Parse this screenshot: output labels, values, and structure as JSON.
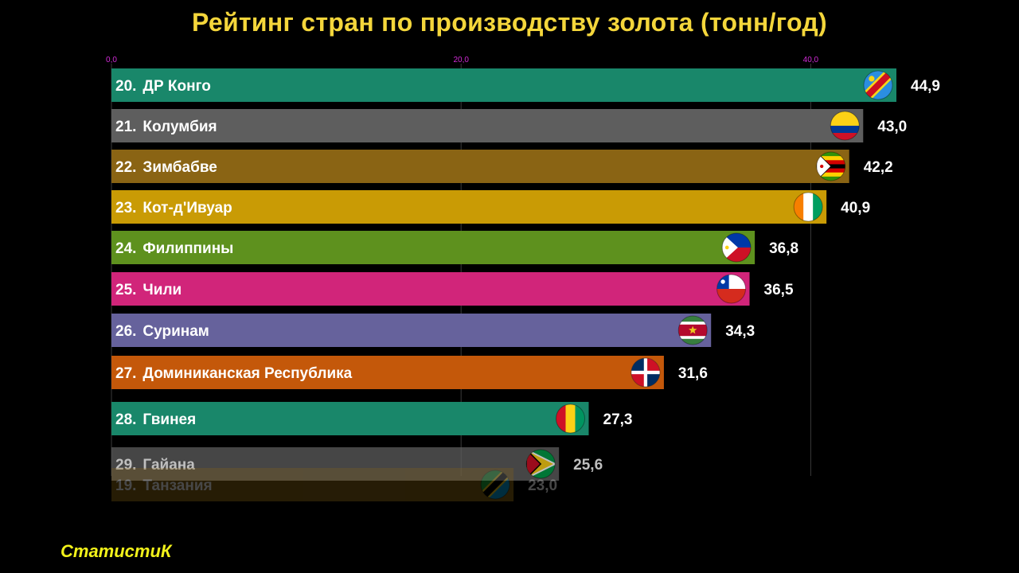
{
  "title": "Рейтинг стран по производству золота (тонн/год)",
  "brand": "СтатистиК",
  "chart_data": {
    "type": "bar",
    "orientation": "horizontal",
    "title": "Рейтинг стран по производству золота (тонн/год)",
    "xlim": [
      0,
      44.9
    ],
    "xticks": [
      0,
      20,
      40
    ],
    "xtick_labels": [
      "0,0",
      "20,0",
      "40,0"
    ],
    "grid": true,
    "bars": [
      {
        "rank": "20.",
        "country": "ДР Конго",
        "value": 44.9,
        "value_label": "44,9",
        "color": "#19876a",
        "opacity": 1,
        "flag": "dr-congo-flag-icon"
      },
      {
        "rank": "21.",
        "country": "Колумбия",
        "value": 43.0,
        "value_label": "43,0",
        "color": "#5e5e5e",
        "opacity": 1,
        "flag": "colombia-flag-icon"
      },
      {
        "rank": "22.",
        "country": "Зимбабве",
        "value": 42.2,
        "value_label": "42,2",
        "color": "#8a6414",
        "opacity": 1,
        "flag": "zimbabwe-flag-icon"
      },
      {
        "rank": "23.",
        "country": "Кот-д'Ивуар",
        "value": 40.9,
        "value_label": "40,9",
        "color": "#c99b05",
        "opacity": 1,
        "flag": "ivory-coast-flag-icon"
      },
      {
        "rank": "24.",
        "country": "Филиппины",
        "value": 36.8,
        "value_label": "36,8",
        "color": "#5e911e",
        "opacity": 1,
        "flag": "philippines-flag-icon"
      },
      {
        "rank": "25.",
        "country": "Чили",
        "value": 36.5,
        "value_label": "36,5",
        "color": "#d1257a",
        "opacity": 1,
        "flag": "chile-flag-icon"
      },
      {
        "rank": "26.",
        "country": "Суринам",
        "value": 34.3,
        "value_label": "34,3",
        "color": "#66629c",
        "opacity": 1,
        "flag": "suriname-flag-icon"
      },
      {
        "rank": "27.",
        "country": "Доминиканская Республика",
        "value": 31.6,
        "value_label": "31,6",
        "color": "#c4580a",
        "opacity": 1,
        "flag": "dominican-republic-flag-icon"
      },
      {
        "rank": "28.",
        "country": "Гвинея",
        "value": 27.3,
        "value_label": "27,3",
        "color": "#19876a",
        "opacity": 1,
        "flag": "guinea-flag-icon"
      },
      {
        "rank": "29.",
        "country": "Гайана",
        "value": 25.6,
        "value_label": "25,6",
        "color": "#5e5e5e",
        "opacity": 0.75,
        "flag": "guyana-flag-icon"
      },
      {
        "rank": "19.",
        "country": "Танзания",
        "value": 23.0,
        "value_label": "23,0",
        "color": "#8a6414",
        "opacity": 0.28,
        "flag": "tanzania-flag-icon"
      }
    ]
  }
}
